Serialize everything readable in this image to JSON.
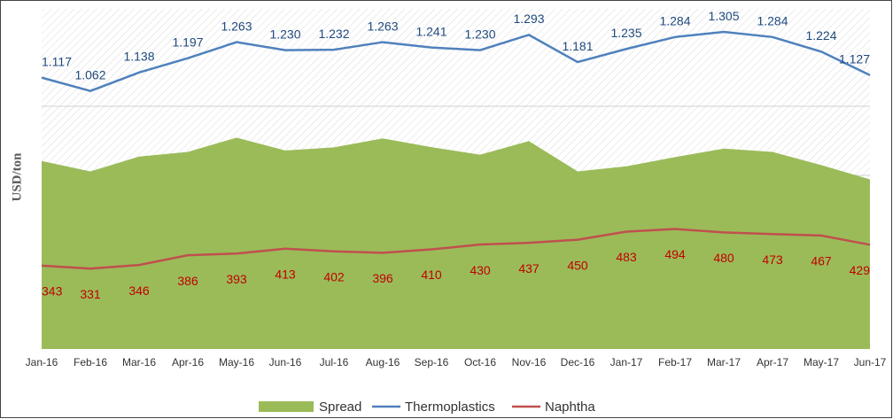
{
  "chart_data": {
    "type": "area_line",
    "y_label": "USD/ton",
    "categories": [
      "Jan-16",
      "Feb-16",
      "Mar-16",
      "Apr-16",
      "May-16",
      "Jun-16",
      "Jul-16",
      "Aug-16",
      "Sep-16",
      "Oct-16",
      "Nov-16",
      "Dec-16",
      "Jan-17",
      "Feb-17",
      "Mar-17",
      "Apr-17",
      "May-17",
      "Jun-17"
    ],
    "ylim": [
      0,
      1400
    ],
    "series": [
      {
        "name": "Spread",
        "color": "#9bbb59",
        "kind": "area",
        "values": [
          774,
          731,
          792,
          811,
          870,
          817,
          830,
          867,
          831,
          800,
          856,
          731,
          752,
          790,
          825,
          811,
          757,
          698
        ]
      },
      {
        "name": "Thermoplastics",
        "color": "#4f81bd",
        "kind": "line",
        "values": [
          1117,
          1062,
          1138,
          1197,
          1263,
          1230,
          1232,
          1263,
          1241,
          1230,
          1293,
          1181,
          1235,
          1284,
          1305,
          1284,
          1224,
          1127
        ],
        "value_labels": [
          "1.117",
          "1.062",
          "1.138",
          "1.197",
          "1.263",
          "1.230",
          "1.232",
          "1.263",
          "1.241",
          "1.230",
          "1.293",
          "1.181",
          "1.235",
          "1.284",
          "1.305",
          "1.284",
          "1.224",
          "1.127"
        ]
      },
      {
        "name": "Naphtha",
        "color": "#c0504d",
        "kind": "line",
        "values": [
          343,
          331,
          346,
          386,
          393,
          413,
          402,
          396,
          410,
          430,
          437,
          450,
          483,
          494,
          480,
          473,
          467,
          429
        ]
      }
    ]
  }
}
